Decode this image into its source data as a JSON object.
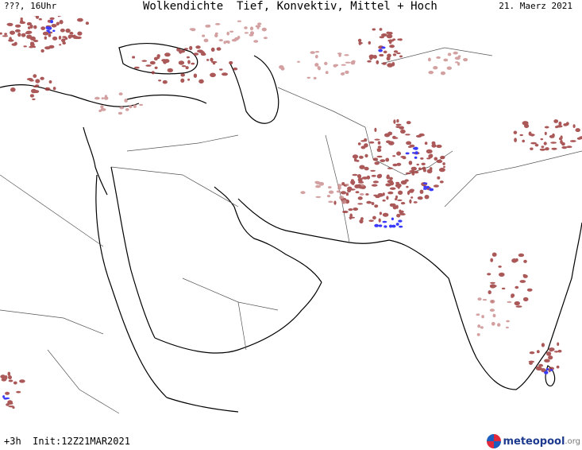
{
  "header": {
    "left": "???, 16Uhr",
    "title": "Wolkendichte  Tief, Konvektiv, Mittel + Hoch",
    "date": "21. Maerz 2021"
  },
  "footer": {
    "run_info": "+3h  Init:12Z21MAR2021",
    "logo_main": "meteopool",
    "logo_suffix": ".org"
  },
  "colors": {
    "cloud_dense": "#9c3b3b",
    "cloud_light": "#c98a8a",
    "convective": "#3a3aff",
    "coastline": "#000000",
    "border": "#444444"
  }
}
